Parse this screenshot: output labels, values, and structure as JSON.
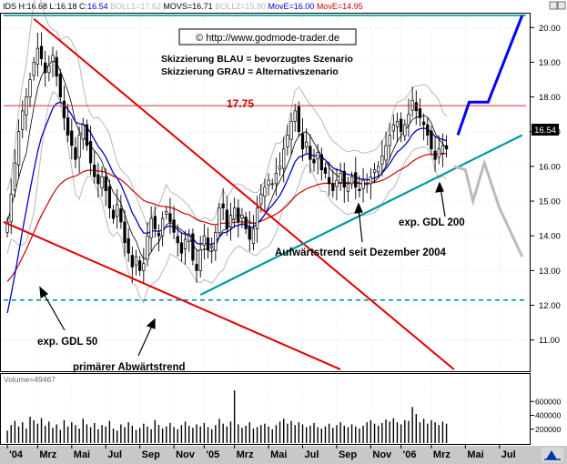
{
  "header": {
    "segments": [
      {
        "text": "IDS H:16.68 L:16.18 C:",
        "color": "#000000"
      },
      {
        "text": "16.54",
        "color": "#0000cc"
      },
      {
        "text": " BOLL1=17.62",
        "color": "#b8b8b8"
      },
      {
        "text": " MOVS=16.71",
        "color": "#000000"
      },
      {
        "text": " BOLL2=15.80",
        "color": "#b8b8b8"
      },
      {
        "text": " MovE=16.00",
        "color": "#0000cc"
      },
      {
        "text": " MovE=14.95",
        "color": "#cc0000"
      }
    ]
  },
  "copyright": "© http://www.godmode-trader.de",
  "legend": {
    "blue": "Skizzierung BLAU = bevorzugtes Szenario",
    "grey": "Skizzierung GRAU = Alternativszenario"
  },
  "annotations": {
    "resistance_value": "17.75",
    "uptrend": "Aufwärtstrend seit Dezember 2004",
    "ema200": "exp. GDL 200",
    "ema50": "exp. GDL 50",
    "downtrend": "primärer Abwärtstrend"
  },
  "price_badge": "16.54",
  "volume_label": "Volume=49467",
  "colors": {
    "candle_body": "#000000",
    "ema50": "#0000cc",
    "ema200": "#cc0000",
    "bollinger": "#b8b8b8",
    "sma": "#000000",
    "trendline_red": "#e00000",
    "trendline_teal": "#009999",
    "scenario_blue": "#0000ff",
    "scenario_grey": "#bbbbbb",
    "resistance": "#cc3333"
  },
  "chart_data": {
    "type": "candlestick",
    "y_axis": {
      "min": 10.1,
      "max": 20.4,
      "ticks": [
        11.0,
        12.0,
        13.0,
        14.0,
        15.0,
        16.0,
        17.0,
        18.0,
        19.0,
        20.0
      ],
      "tick_labels": [
        "11.00",
        "12.00",
        "13.00",
        "14.00",
        "15.00",
        "16.00",
        "17.00",
        "18.00",
        "19.00",
        "20.00"
      ]
    },
    "x_axis": {
      "tick_labels": [
        "'04",
        "Mrz",
        "Mai",
        "Jul",
        "Sep",
        "Nov",
        "'05",
        "Mrz",
        "Mai",
        "Jul",
        "Sep",
        "Nov",
        "'06",
        "Mrz",
        "Mai",
        "Jul"
      ],
      "tick_index": [
        0,
        8,
        17,
        26,
        35,
        44,
        52,
        60,
        69,
        78,
        87,
        96,
        104,
        112,
        121,
        130
      ]
    },
    "n_slots": 138,
    "closes": [
      14.4,
      15.2,
      16.1,
      17.0,
      17.6,
      18.0,
      18.5,
      19.0,
      19.4,
      19.1,
      18.7,
      18.9,
      19.2,
      18.6,
      18.0,
      17.4,
      16.9,
      16.6,
      16.2,
      16.9,
      17.2,
      16.6,
      16.1,
      15.7,
      15.5,
      15.7,
      15.3,
      14.8,
      14.5,
      14.9,
      14.4,
      13.8,
      13.5,
      13.1,
      13.4,
      13.0,
      13.2,
      14.0,
      14.5,
      14.2,
      14.0,
      14.5,
      14.7,
      14.4,
      14.1,
      13.8,
      13.5,
      13.9,
      14.0,
      13.3,
      13.0,
      13.6,
      14.0,
      13.6,
      13.7,
      14.1,
      14.8,
      14.8,
      14.2,
      14.6,
      14.8,
      14.4,
      14.6,
      14.2,
      13.9,
      14.2,
      14.8,
      15.2,
      15.4,
      15.6,
      15.5,
      15.8,
      16.0,
      16.5,
      16.9,
      17.3,
      17.6,
      17.0,
      16.5,
      16.7,
      16.2,
      16.1,
      16.4,
      15.9,
      15.8,
      15.5,
      15.3,
      15.6,
      15.8,
      15.4,
      15.5,
      15.7,
      15.4,
      15.3,
      15.6,
      15.5,
      15.7,
      15.9,
      16.0,
      16.3,
      16.6,
      16.9,
      17.2,
      17.3,
      17.0,
      17.2,
      17.5,
      17.9,
      17.6,
      17.4,
      17.2,
      16.9,
      16.5,
      16.2,
      16.5,
      16.6,
      16.5
    ],
    "volume": {
      "max": 800000,
      "ticks": [
        200000,
        400000,
        600000
      ],
      "tick_labels": [
        "200000",
        "400000",
        "600000"
      ]
    },
    "volumes": [
      180000,
      260000,
      320000,
      240000,
      300000,
      210000,
      380000,
      330000,
      280000,
      360000,
      250000,
      310000,
      220000,
      270000,
      190000,
      330000,
      240000,
      300000,
      260000,
      210000,
      350000,
      270000,
      230000,
      290000,
      200000,
      260000,
      240000,
      320000,
      210000,
      180000,
      270000,
      230000,
      300000,
      250000,
      190000,
      220000,
      280000,
      240000,
      200000,
      330000,
      260000,
      210000,
      240000,
      290000,
      230000,
      200000,
      260000,
      310000,
      250000,
      220000,
      270000,
      240000,
      290000,
      230000,
      200000,
      260000,
      350000,
      280000,
      240000,
      310000,
      760000,
      270000,
      220000,
      250000,
      300000,
      210000,
      230000,
      260000,
      280000,
      240000,
      200000,
      260000,
      310000,
      350000,
      280000,
      320000,
      260000,
      300000,
      270000,
      230000,
      250000,
      290000,
      230000,
      210000,
      240000,
      280000,
      220000,
      260000,
      300000,
      250000,
      230000,
      270000,
      240000,
      210000,
      250000,
      300000,
      330000,
      280000,
      250000,
      290000,
      340000,
      310000,
      360000,
      300000,
      270000,
      330000,
      320000,
      520000,
      420000,
      300000,
      350000,
      280000,
      330000,
      300000,
      260000,
      310000,
      280000
    ]
  }
}
